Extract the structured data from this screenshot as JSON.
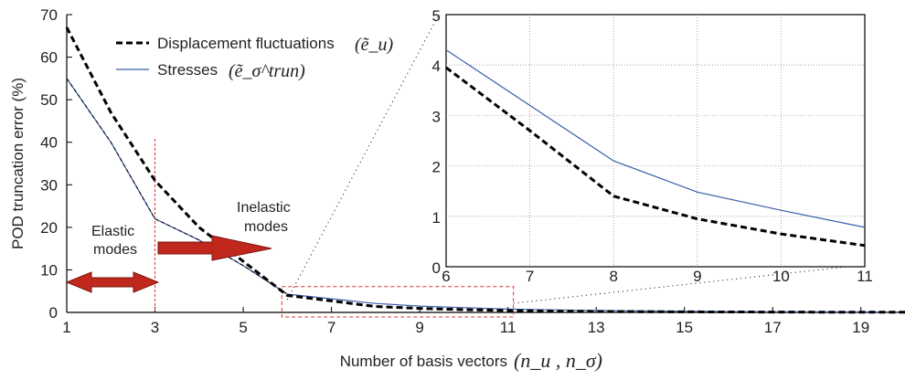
{
  "chart_data": [
    {
      "type": "line",
      "xlabel": "Number of basis vectors",
      "xlabel_math": "(n_u , n_σ)",
      "ylabel": "POD truncation error (%)",
      "xlim": [
        1,
        20
      ],
      "ylim": [
        0,
        70
      ],
      "x_ticks": [
        1,
        3,
        5,
        7,
        9,
        11,
        13,
        15,
        17,
        19
      ],
      "y_ticks": [
        0,
        10,
        20,
        30,
        40,
        50,
        60,
        70
      ],
      "grid": false,
      "legend_position": "top-center",
      "series": [
        {
          "name": "Displacement fluctuations",
          "symbol": "(ẽ_u)",
          "style": "dashed-thick",
          "color": "#000000",
          "x": [
            1,
            2,
            3,
            4,
            5,
            6,
            7,
            8,
            9,
            10,
            11,
            12,
            13,
            14,
            15,
            16,
            17,
            18,
            19,
            20
          ],
          "values": [
            67,
            47,
            31,
            20,
            12,
            4,
            2.7,
            1.4,
            0.95,
            0.65,
            0.42,
            0.3,
            0.22,
            0.17,
            0.13,
            0.1,
            0.08,
            0.07,
            0.06,
            0.05
          ]
        },
        {
          "name": "Stresses",
          "symbol": "(ẽ_σ^trun)",
          "style": "solid",
          "color": "#3a5ea8",
          "x": [
            1,
            2,
            3,
            4,
            5,
            6,
            7,
            8,
            9,
            10,
            11,
            12,
            13,
            14,
            15,
            16,
            17,
            18,
            19,
            20
          ],
          "values": [
            55,
            40,
            22,
            17,
            11,
            4.3,
            3.2,
            2.1,
            1.48,
            1.12,
            0.78,
            0.6,
            0.45,
            0.35,
            0.27,
            0.2,
            0.15,
            0.12,
            0.1,
            0.08
          ]
        },
        {
          "name": "",
          "style": "dashed-thin",
          "color": "#000000",
          "x": [
            1,
            2,
            3,
            4,
            5,
            6
          ],
          "values": [
            55,
            40,
            22,
            17,
            11,
            4.3
          ]
        }
      ],
      "annotations": [
        {
          "text": "Elastic",
          "text2": "modes"
        },
        {
          "text": "Inelastic",
          "text2": "modes"
        }
      ],
      "elastic_limit_x": 3,
      "zoom_box": {
        "x": [
          6,
          11
        ],
        "y": [
          0,
          5
        ]
      }
    },
    {
      "type": "line",
      "role": "inset",
      "xlim": [
        6,
        11
      ],
      "ylim": [
        0,
        5
      ],
      "x_ticks": [
        6,
        7,
        8,
        9,
        10,
        11
      ],
      "y_ticks": [
        0,
        1,
        2,
        3,
        4,
        5
      ],
      "grid": true,
      "series": [
        {
          "name": "Stresses",
          "style": "solid",
          "color": "#3a5ea8",
          "x": [
            6,
            7,
            8,
            9,
            10,
            11
          ],
          "values": [
            4.3,
            3.2,
            2.1,
            1.48,
            1.12,
            0.78
          ]
        },
        {
          "name": "Displacement fluctuations",
          "style": "dashed-thick",
          "color": "#000000",
          "x": [
            6,
            7,
            8,
            9,
            10,
            11
          ],
          "values": [
            3.95,
            2.7,
            1.4,
            0.95,
            0.65,
            0.42
          ]
        }
      ]
    }
  ],
  "colors": {
    "arrow": "#c0271d",
    "arrow_stroke": "#7a1510",
    "highlight": "#d9342b",
    "stress_line": "#3a5ea8"
  }
}
